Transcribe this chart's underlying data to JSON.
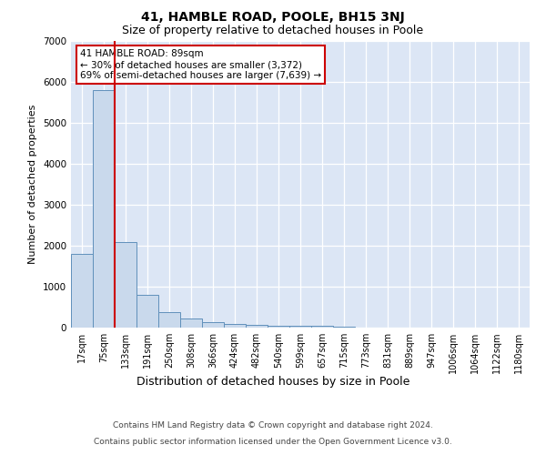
{
  "title_line1": "41, HAMBLE ROAD, POOLE, BH15 3NJ",
  "title_line2": "Size of property relative to detached houses in Poole",
  "xlabel": "Distribution of detached houses by size in Poole",
  "ylabel": "Number of detached properties",
  "footer_line1": "Contains HM Land Registry data © Crown copyright and database right 2024.",
  "footer_line2": "Contains public sector information licensed under the Open Government Licence v3.0.",
  "categories": [
    "17sqm",
    "75sqm",
    "133sqm",
    "191sqm",
    "250sqm",
    "308sqm",
    "366sqm",
    "424sqm",
    "482sqm",
    "540sqm",
    "599sqm",
    "657sqm",
    "715sqm",
    "773sqm",
    "831sqm",
    "889sqm",
    "947sqm",
    "1006sqm",
    "1064sqm",
    "1122sqm",
    "1180sqm"
  ],
  "values": [
    1800,
    5800,
    2100,
    800,
    380,
    230,
    140,
    90,
    65,
    50,
    40,
    35,
    30,
    5,
    5,
    5,
    0,
    0,
    0,
    0,
    0
  ],
  "bar_color": "#c9d9ec",
  "bar_edge_color": "#6090bb",
  "red_line_bar_index": 1,
  "property_line_color": "#cc0000",
  "annotation_title": "41 HAMBLE ROAD: 89sqm",
  "annotation_line1": "← 30% of detached houses are smaller (3,372)",
  "annotation_line2": "69% of semi-detached houses are larger (7,639) →",
  "annotation_box_facecolor": "#ffffff",
  "annotation_box_edgecolor": "#cc0000",
  "ylim": [
    0,
    7000
  ],
  "yticks": [
    0,
    1000,
    2000,
    3000,
    4000,
    5000,
    6000,
    7000
  ],
  "grid_color": "#d0d8e8",
  "plot_bg_color": "#dce6f5",
  "title1_fontsize": 10,
  "title2_fontsize": 9,
  "ylabel_fontsize": 8,
  "xlabel_fontsize": 9,
  "tick_fontsize": 7,
  "footer_fontsize": 6.5
}
